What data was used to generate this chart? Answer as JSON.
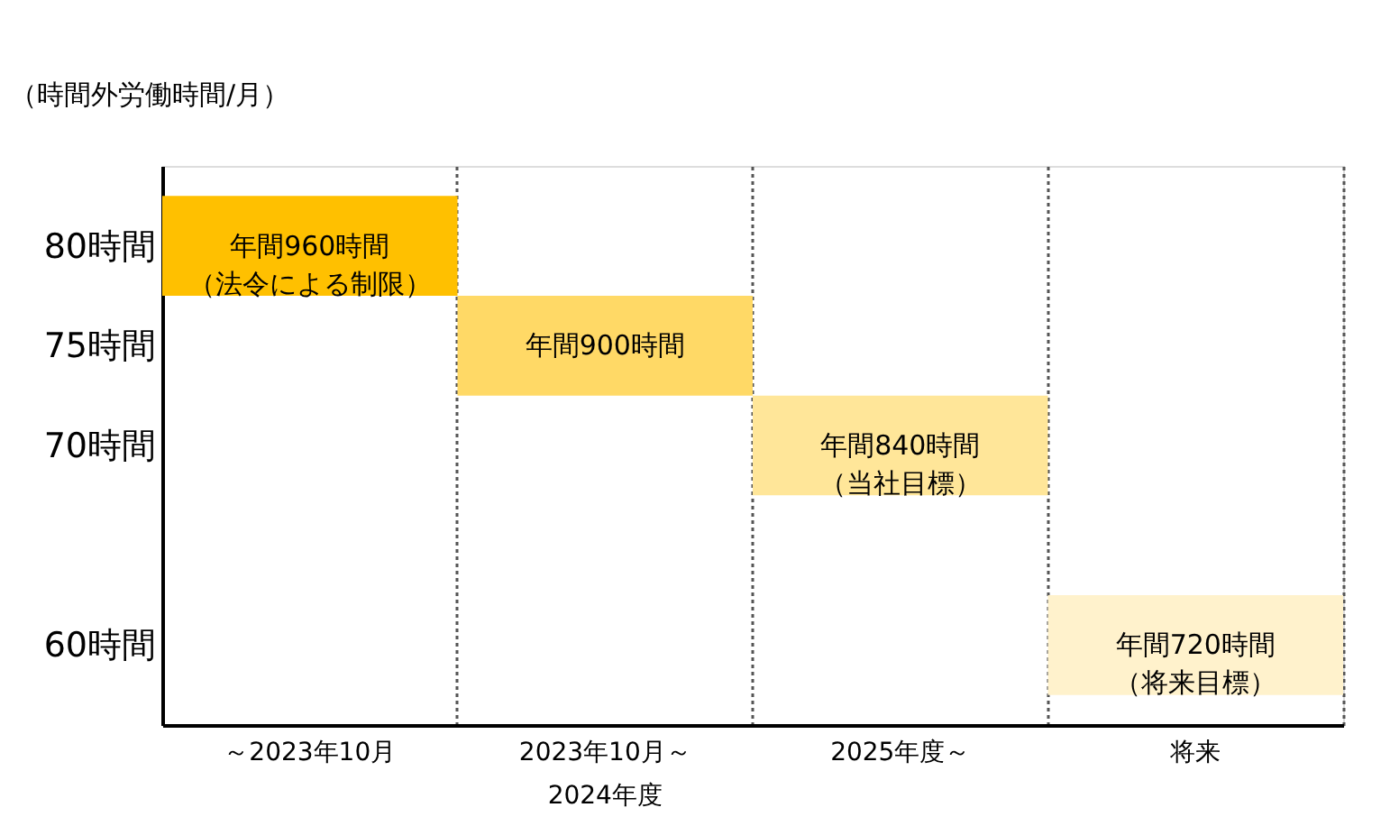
{
  "chart_data": {
    "type": "bar",
    "ylabel": "（時間外労働時間/月）",
    "categories": [
      "～2023年10月",
      "2023年10月～2024年度",
      "2025年度～",
      "将来"
    ],
    "base": [
      77.5,
      72.5,
      67.5,
      57.5
    ],
    "values": [
      5,
      5,
      5,
      5
    ],
    "colors": [
      "#ffc000",
      "#ffd966",
      "#ffe699",
      "#fff2cc"
    ],
    "value_labels": [
      "年間960時間（法令による制限）",
      "年間900時間",
      "年間840時間（当社目標）",
      "年間720時間（将来目標）"
    ],
    "ylim": [
      56,
      84
    ],
    "yticks": [
      {
        "value": 60,
        "label": "60時間"
      },
      {
        "value": 70,
        "label": "70時間"
      },
      {
        "value": 75,
        "label": "75時間"
      },
      {
        "value": 80,
        "label": "80時間"
      }
    ],
    "grid": "x"
  }
}
